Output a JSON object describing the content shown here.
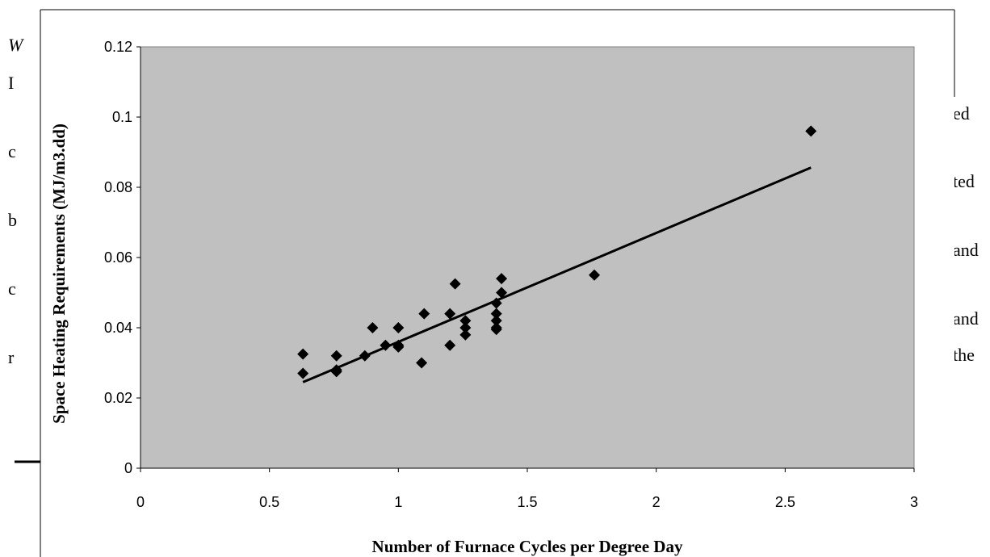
{
  "document_fragments": {
    "left": [
      "W",
      "I",
      "c",
      "b",
      "c",
      "r"
    ],
    "right": [
      "ed",
      "ted",
      "and",
      "and",
      "the"
    ]
  },
  "chart_data": {
    "type": "scatter",
    "x_label": "Number of Furnace Cycles per Degree Day",
    "y_label": "Space Heating Requirements (MJ/m3.dd)",
    "series": [
      {
        "color": "#000000",
        "x": [
          0.63,
          0.63,
          0.76,
          0.76,
          0.76,
          0.87,
          0.9,
          0.95,
          1.0,
          1.0,
          1.0,
          1.09,
          1.1,
          1.2,
          1.2,
          1.22,
          1.26,
          1.26,
          1.26,
          1.38,
          1.38,
          1.38,
          1.38,
          1.38,
          1.4,
          1.4,
          1.76,
          2.6
        ],
        "values": [
          0.0325,
          0.027,
          0.032,
          0.0275,
          0.028,
          0.032,
          0.04,
          0.035,
          0.04,
          0.0345,
          0.035,
          0.03,
          0.044,
          0.044,
          0.035,
          0.0525,
          0.042,
          0.04,
          0.038,
          0.047,
          0.044,
          0.042,
          0.04,
          0.0395,
          0.054,
          0.05,
          0.055,
          0.096
        ]
      }
    ],
    "trendline": {
      "color": "#000000",
      "x": [
        0.63,
        2.6
      ],
      "values": [
        0.0245,
        0.0856
      ]
    },
    "xlim": [
      0,
      3
    ],
    "xticks": [
      0,
      0.5,
      1,
      1.5,
      2,
      2.5,
      3
    ],
    "ylim": [
      0,
      0.12
    ],
    "yticks": [
      0,
      0.02,
      0.04,
      0.06,
      0.08,
      0.1,
      0.12
    ],
    "plot_background": "#c0c0c0"
  }
}
